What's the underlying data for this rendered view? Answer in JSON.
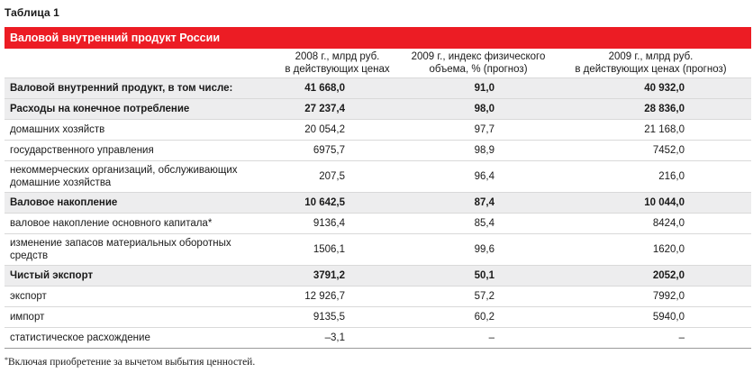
{
  "caption": "Таблица 1",
  "title": "Валовой внутренний продукт России",
  "headers": {
    "col0": "",
    "col1_line1": "2008 г., млрд руб.",
    "col1_line2": "в действующих ценах",
    "col2_line1": "2009 г., индекс физического",
    "col2_line2": "объема, % (прогноз)",
    "col3_line1": "2009 г., млрд руб.",
    "col3_line2": "в действующих ценах (прогноз)"
  },
  "rows": [
    {
      "label": "Валовой внутренний продукт, в том числе:",
      "label2": "",
      "v2008": "41 668,0",
      "index2009": "91,0",
      "v2009": "40 932,0",
      "bold": true
    },
    {
      "label": "Расходы на конечное потребление",
      "label2": "",
      "v2008": "27 237,4",
      "index2009": "98,0",
      "v2009": "28 836,0",
      "bold": true
    },
    {
      "label": "домашних хозяйств",
      "label2": "",
      "v2008": "20 054,2",
      "index2009": "97,7",
      "v2009": "21 168,0",
      "bold": false
    },
    {
      "label": "государственного управления",
      "label2": "",
      "v2008": "6975,7",
      "index2009": "98,9",
      "v2009": "7452,0",
      "bold": false
    },
    {
      "label": "некоммерческих организаций, обслуживающих",
      "label2": "домашние хозяйства",
      "v2008": "207,5",
      "index2009": "96,4",
      "v2009": "216,0",
      "bold": false
    },
    {
      "label": "Валовое накопление",
      "label2": "",
      "v2008": "10 642,5",
      "index2009": "87,4",
      "v2009": "10 044,0",
      "bold": true
    },
    {
      "label": "валовое накопление основного капитала*",
      "label2": "",
      "v2008": "9136,4",
      "index2009": "85,4",
      "v2009": "8424,0",
      "bold": false
    },
    {
      "label": "изменение запасов материальных оборотных",
      "label2": "средств",
      "v2008": "1506,1",
      "index2009": "99,6",
      "v2009": "1620,0",
      "bold": false
    },
    {
      "label": "Чистый экспорт",
      "label2": "",
      "v2008": "3791,2",
      "index2009": "50,1",
      "v2009": "2052,0",
      "bold": true
    },
    {
      "label": "экспорт",
      "label2": "",
      "v2008": "12 926,7",
      "index2009": "57,2",
      "v2009": "7992,0",
      "bold": false
    },
    {
      "label": "импорт",
      "label2": "",
      "v2008": "9135,5",
      "index2009": "60,2",
      "v2009": "5940,0",
      "bold": false
    },
    {
      "label": "статистическое расхождение",
      "label2": "",
      "v2008": "–3,1",
      "index2009": "–",
      "v2009": "–",
      "bold": false
    }
  ],
  "footnote_mark": "*",
  "footnote_text": "Включая приобретение за вычетом выбытия ценностей.",
  "colors": {
    "accent": "#ec1c24",
    "shade": "#ededee",
    "rule": "#d9d9d9"
  }
}
